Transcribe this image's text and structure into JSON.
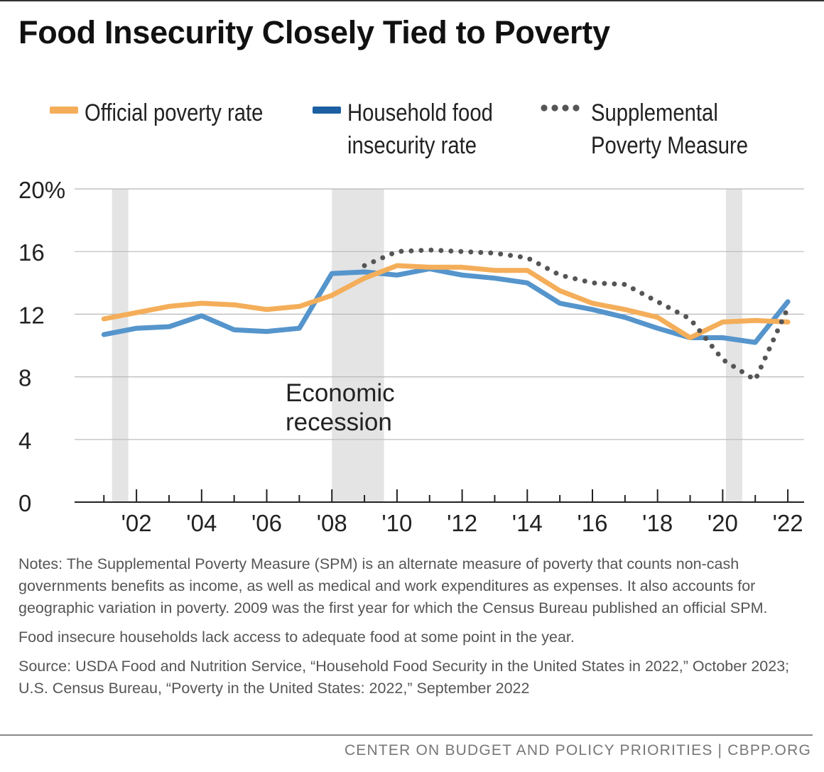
{
  "title": "Food Insecurity Closely Tied to Poverty",
  "legend": [
    {
      "label_lines": [
        "Official poverty rate"
      ],
      "color": "#f4ae5a",
      "style": "solid"
    },
    {
      "label_lines": [
        "Household food",
        "insecurity rate"
      ],
      "color": "#1c5fa3",
      "style": "solid"
    },
    {
      "label_lines": [
        "Supplemental",
        "Poverty Measure"
      ],
      "color": "#555555",
      "style": "dotted"
    }
  ],
  "chart_data": {
    "type": "line",
    "x": [
      2001,
      2002,
      2003,
      2004,
      2005,
      2006,
      2007,
      2008,
      2009,
      2010,
      2011,
      2012,
      2013,
      2014,
      2015,
      2016,
      2017,
      2018,
      2019,
      2020,
      2021,
      2022
    ],
    "series": [
      {
        "name": "Official poverty rate",
        "color": "#f4ae5a",
        "values": [
          11.7,
          12.1,
          12.5,
          12.7,
          12.6,
          12.3,
          12.5,
          13.2,
          14.3,
          15.1,
          15.0,
          15.0,
          14.8,
          14.8,
          13.5,
          12.7,
          12.3,
          11.8,
          10.5,
          11.5,
          11.6,
          11.5
        ]
      },
      {
        "name": "Household food insecurity rate",
        "color": "#5595cc",
        "values": [
          10.7,
          11.1,
          11.2,
          11.9,
          11.0,
          10.9,
          11.1,
          14.6,
          14.7,
          14.5,
          14.9,
          14.5,
          14.3,
          14.0,
          12.7,
          12.3,
          11.8,
          11.1,
          10.5,
          10.5,
          10.2,
          12.8
        ]
      },
      {
        "name": "Supplemental Poverty Measure",
        "color": "#555555",
        "style": "dotted",
        "x": [
          2009,
          2010,
          2011,
          2012,
          2013,
          2014,
          2015,
          2016,
          2017,
          2018,
          2019,
          2020,
          2021,
          2022
        ],
        "values": [
          15.1,
          16.0,
          16.1,
          16.0,
          15.9,
          15.6,
          14.5,
          14.0,
          13.9,
          12.8,
          11.7,
          9.1,
          7.8,
          12.4
        ]
      }
    ],
    "recessions": [
      [
        2001.25,
        2001.75
      ],
      [
        2008.0,
        2009.6
      ],
      [
        2020.1,
        2020.6
      ]
    ],
    "recession_label": [
      "Economic",
      "recession"
    ],
    "ylim": [
      0,
      20
    ],
    "yticks": [
      0,
      4,
      8,
      12,
      16,
      20
    ],
    "ytick_labels": [
      "0",
      "4",
      "8",
      "12",
      "16",
      "20%"
    ],
    "xlim": [
      2000.1,
      2022.5
    ],
    "xticks": [
      2002,
      2004,
      2006,
      2008,
      2010,
      2012,
      2014,
      2016,
      2018,
      2020,
      2022
    ],
    "xtick_labels": [
      "'02",
      "'04",
      "'06",
      "'08",
      "'10",
      "'12",
      "'14",
      "'16",
      "'18",
      "'20",
      "'22"
    ],
    "grid": true
  },
  "notes": [
    "Notes: The Supplemental Poverty Measure (SPM) is an alternate measure of poverty that counts non-cash governments benefits as income, as well as medical and work expenditures as expenses. It also accounts for geographic variation in poverty. 2009 was the first year for which the Census Bureau published an official SPM.",
    "Food insecure households lack access to adequate food at some point in the year.",
    "Source: USDA Food and Nutrition Service, “Household Food Security in the United States in 2022,” October 2023; U.S. Census Bureau, “Poverty in the United States: 2022,” September 2022"
  ],
  "footer": "CENTER ON BUDGET AND POLICY PRIORITIES | CBPP.ORG"
}
